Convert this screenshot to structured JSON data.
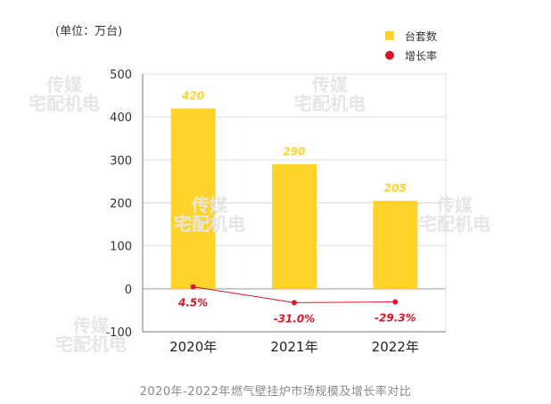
{
  "unit_label": "(单位：万台)",
  "caption": "2020年-2022年燃气壁挂炉市场规模及增长率对比",
  "watermark": {
    "line1": "传媒",
    "line2": "宅配机电"
  },
  "colors": {
    "bar": "#FFD42A",
    "line": "#D7182A",
    "axis": "#777777",
    "grid": "#dddddd"
  },
  "chart_data": {
    "type": "bar",
    "categories": [
      "2020年",
      "2021年",
      "2022年"
    ],
    "series": [
      {
        "name": "台套数",
        "type": "bar",
        "values": [
          420,
          290,
          205
        ],
        "labels": [
          "420",
          "290",
          "205"
        ]
      },
      {
        "name": "增长率",
        "type": "line",
        "values": [
          4.5,
          -31.0,
          -29.3
        ],
        "labels": [
          "4.5%",
          "-31.0%",
          "-29.3%"
        ]
      }
    ],
    "y_ticks": [
      "500",
      "400",
      "300",
      "200",
      "100",
      "0",
      "-100"
    ],
    "ylim": [
      -100,
      500
    ],
    "grid": true,
    "legend_position": "top-right"
  }
}
